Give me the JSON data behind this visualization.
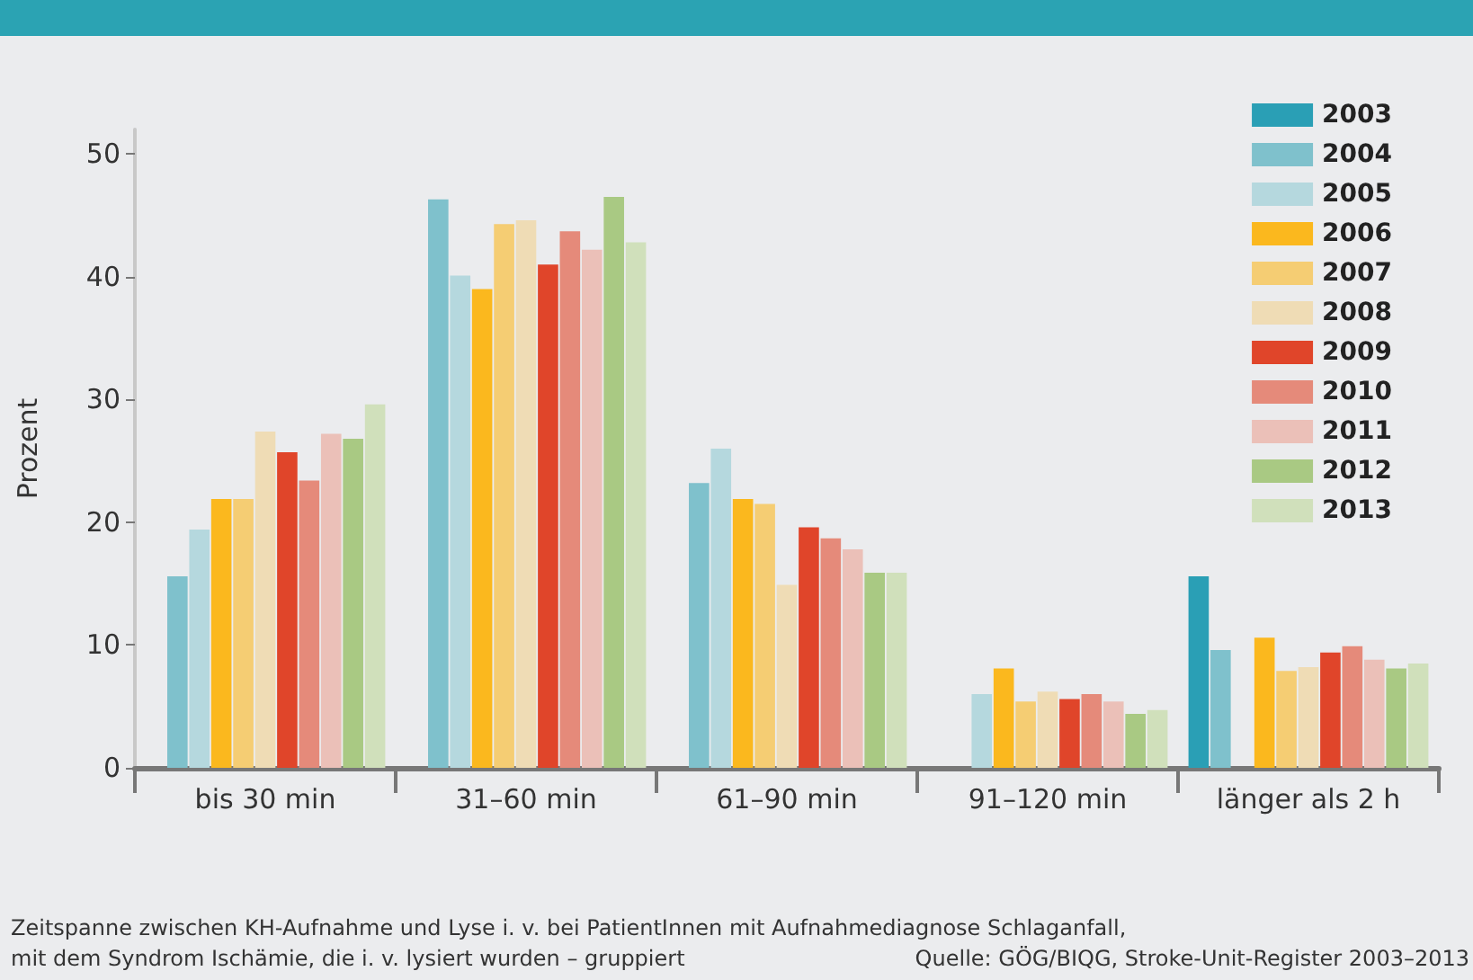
{
  "chart_data": {
    "type": "bar",
    "ylabel": "Prozent",
    "categories": [
      "bis 30 min",
      "31–60 min",
      "61–90 min",
      "91–120 min",
      "länger als 2 h"
    ],
    "series": [
      {
        "name": "2003",
        "color": "#2a9fb5",
        "values": [
          null,
          null,
          null,
          null,
          15.6
        ]
      },
      {
        "name": "2004",
        "color": "#7fc1cc",
        "values": [
          15.6,
          46.3,
          23.2,
          null,
          9.6
        ]
      },
      {
        "name": "2005",
        "color": "#b5d8de",
        "values": [
          19.4,
          40.1,
          26.0,
          6.0,
          null
        ]
      },
      {
        "name": "2006",
        "color": "#fbb81e",
        "values": [
          21.9,
          39.0,
          21.9,
          8.1,
          10.6
        ]
      },
      {
        "name": "2007",
        "color": "#f5cd73",
        "values": [
          21.9,
          44.3,
          21.5,
          5.4,
          7.9
        ]
      },
      {
        "name": "2008",
        "color": "#efdcb5",
        "values": [
          27.4,
          44.6,
          14.9,
          6.2,
          8.2
        ]
      },
      {
        "name": "2009",
        "color": "#e0452a",
        "values": [
          25.7,
          41.0,
          19.6,
          5.6,
          9.4
        ]
      },
      {
        "name": "2010",
        "color": "#e58a7a",
        "values": [
          23.4,
          43.7,
          18.7,
          6.0,
          9.9
        ]
      },
      {
        "name": "2011",
        "color": "#ebc0b8",
        "values": [
          27.2,
          42.2,
          17.8,
          5.4,
          8.8
        ]
      },
      {
        "name": "2012",
        "color": "#a9c983",
        "values": [
          26.8,
          46.5,
          15.9,
          4.4,
          8.1
        ]
      },
      {
        "name": "2013",
        "color": "#d0e0bb",
        "values": [
          29.6,
          42.8,
          15.9,
          4.7,
          8.5
        ]
      }
    ],
    "ylim": [
      0,
      52
    ],
    "yticks": [
      0,
      10,
      20,
      30,
      40,
      50
    ],
    "grid": false,
    "legend": "top right",
    "annotations": [
      "Zeitspanne zwischen KH-Aufnahme und Lyse i. v. bei PatientInnen mit Aufnahmediagnose Schlaganfall,",
      "mit dem Syndrom Ischämie, die i. v. lysiert wurden – gruppiert",
      "Quelle: GÖG/BIQG, Stroke-Unit-Register 2003–2013"
    ]
  }
}
